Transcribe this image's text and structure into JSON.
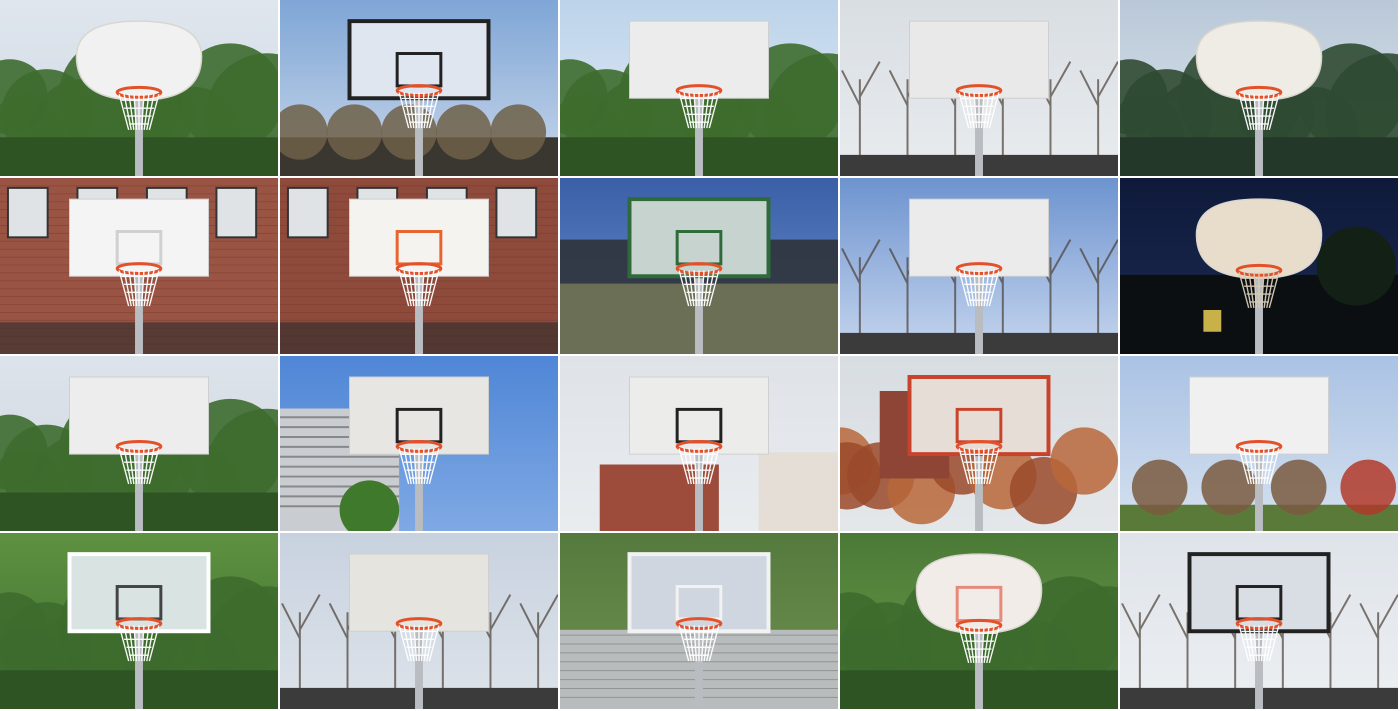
{
  "collage": {
    "columns": 5,
    "rows": 4,
    "tiles": [
      {
        "sky": [
          "#dfe6ee",
          "#cfd8e2"
        ],
        "backdrop": "trees",
        "board": "fan",
        "board_color": "#f1f1f1",
        "frame": "none",
        "square": "none",
        "net": "#ffffff"
      },
      {
        "sky": [
          "#7fa6d6",
          "#c9d7ea"
        ],
        "backdrop": "trees-low",
        "board": "rect",
        "board_color": "#dfe6ef",
        "frame": "#222222",
        "square": "#222222",
        "net": "#ffffff"
      },
      {
        "sky": [
          "#bcd3ea",
          "#e4edf5"
        ],
        "backdrop": "trees",
        "board": "rect",
        "board_color": "#ececec",
        "frame": "none",
        "square": "none",
        "net": "#ffffff"
      },
      {
        "sky": [
          "#d9dee3",
          "#e8ecef"
        ],
        "backdrop": "bare-trees",
        "board": "rect",
        "board_color": "#e9e9e9",
        "frame": "none",
        "square": "none",
        "net": "#ffffff"
      },
      {
        "sky": [
          "#b9c8d8",
          "#dde5ec"
        ],
        "backdrop": "pines",
        "board": "fan",
        "board_color": "#efece6",
        "frame": "none",
        "square": "none",
        "net": "#ffffff"
      },
      {
        "sky": [
          "#9a5443",
          "#a55d4a"
        ],
        "backdrop": "brick",
        "board": "rect",
        "board_color": "#f4f4f4",
        "frame": "none",
        "square": "#d0d0d0",
        "net": "#ffffff"
      },
      {
        "sky": [
          "#8e4a3b",
          "#a15847"
        ],
        "backdrop": "brick",
        "board": "rect",
        "board_color": "#f5f3f0",
        "frame": "none",
        "square": "#e8642f",
        "net": "#ffffff"
      },
      {
        "sky": [
          "#3a5fa8",
          "#6e8fc8"
        ],
        "backdrop": "wall",
        "board": "rect",
        "board_color": "#c7d3cf",
        "frame": "#2f6b3a",
        "square": "#2f6b3a",
        "net": "#ffffff"
      },
      {
        "sky": [
          "#6d93cf",
          "#c6d6ee"
        ],
        "backdrop": "bare-trees",
        "board": "rect",
        "board_color": "#ebebeb",
        "frame": "none",
        "square": "none",
        "net": "#ffffff"
      },
      {
        "sky": [
          "#0f1a3a",
          "#1b2a52"
        ],
        "backdrop": "night",
        "board": "fan",
        "board_color": "#e8dccb",
        "frame": "none",
        "square": "none",
        "net": "#d8cdb8"
      },
      {
        "sky": [
          "#dde3ea",
          "#cfd7df"
        ],
        "backdrop": "trees",
        "board": "rect",
        "board_color": "#ededed",
        "frame": "none",
        "square": "none",
        "net": "#ffffff"
      },
      {
        "sky": [
          "#4f86d6",
          "#7fa9e4"
        ],
        "backdrop": "building",
        "board": "rect",
        "board_color": "#e7e6e2",
        "frame": "none",
        "square": "#222222",
        "net": "#ffffff"
      },
      {
        "sky": [
          "#dfe3e8",
          "#e9ecef"
        ],
        "backdrop": "brick-low",
        "board": "rect",
        "board_color": "#ececea",
        "frame": "none",
        "square": "#222222",
        "net": "#ffffff"
      },
      {
        "sky": [
          "#d8dde2",
          "#e4e7ea"
        ],
        "backdrop": "autumn",
        "board": "rect",
        "board_color": "#e5ddd6",
        "frame": "#c8432c",
        "square": "#c8432c",
        "net": "#ffffff"
      },
      {
        "sky": [
          "#aac2e4",
          "#d5e1ef"
        ],
        "backdrop": "park",
        "board": "rect",
        "board_color": "#f0f0f0",
        "frame": "none",
        "square": "none",
        "net": "#ffffff"
      },
      {
        "sky": [
          "#5e9140",
          "#3f7030"
        ],
        "backdrop": "trees",
        "board": "rect",
        "board_color": "#d9e3e2",
        "frame": "#ffffff",
        "square": "#444444",
        "net": "#ffffff"
      },
      {
        "sky": [
          "#c8d2df",
          "#dde3ea"
        ],
        "backdrop": "bare-trees",
        "board": "rect",
        "board_color": "#e6e4de",
        "frame": "none",
        "square": "none",
        "net": "#ffffff"
      },
      {
        "sky": [
          "#557a3e",
          "#6f9150"
        ],
        "backdrop": "house",
        "board": "rect",
        "board_color": "#cfd6e0",
        "frame": "#f2f2f2",
        "square": "#f2f2f2",
        "net": "#ffffff"
      },
      {
        "sky": [
          "#4a7a36",
          "#6b9a4b"
        ],
        "backdrop": "trees",
        "board": "fan",
        "board_color": "#f1ece8",
        "frame": "none",
        "square": "#e8897a",
        "net": "#ffffff"
      },
      {
        "sky": [
          "#dfe4ea",
          "#eceff2"
        ],
        "backdrop": "bare-trees",
        "board": "rect",
        "board_color": "#d9dee4",
        "frame": "#222222",
        "square": "#222222",
        "net": "#ffffff"
      }
    ]
  }
}
